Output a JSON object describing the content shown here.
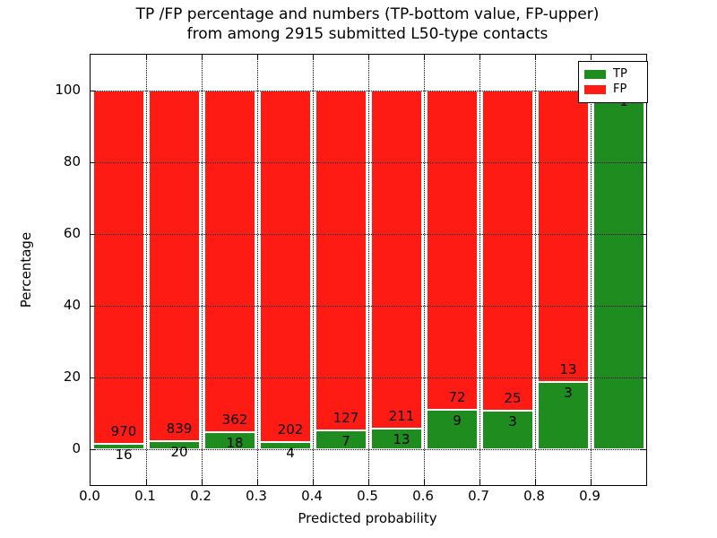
{
  "title": {
    "line1": "TP /FP percentage and numbers (TP-bottom value, FP-upper)",
    "line2": "from among 2915 submitted L50-type contacts"
  },
  "chart_data": {
    "type": "bar",
    "stacked": true,
    "orientation": "vertical",
    "total_contacts": 2915,
    "categories": [
      "0.0-0.1",
      "0.1-0.2",
      "0.2-0.3",
      "0.3-0.4",
      "0.4-0.5",
      "0.5-0.6",
      "0.6-0.7",
      "0.7-0.8",
      "0.8-0.9",
      "0.9-1.0"
    ],
    "series": [
      {
        "name": "TP",
        "color": "#1e8c1e",
        "counts": [
          16,
          20,
          18,
          4,
          7,
          13,
          9,
          3,
          3,
          1
        ]
      },
      {
        "name": "FP",
        "color": "#fd1b14",
        "counts": [
          970,
          839,
          362,
          202,
          127,
          211,
          72,
          25,
          13,
          0
        ]
      }
    ],
    "bar_value_labels_note": "TP count printed near bottom of each bar, FP count printed above it",
    "xlabel": "Predicted probability",
    "ylabel": "Percentage",
    "x_tick_labels": [
      "0.0",
      "0.1",
      "0.2",
      "0.3",
      "0.4",
      "0.5",
      "0.6",
      "0.7",
      "0.8",
      "0.9"
    ],
    "x_tick_values": [
      0.0,
      0.1,
      0.2,
      0.3,
      0.4,
      0.5,
      0.6,
      0.7,
      0.8,
      0.9
    ],
    "y_tick_values": [
      0,
      20,
      40,
      60,
      80,
      100
    ],
    "xlim": [
      0.0,
      1.0
    ],
    "ylim": [
      -10,
      110
    ],
    "grid": "dotted, drawn above bars",
    "legend": {
      "position": "upper right",
      "entries": [
        {
          "label": "TP",
          "color": "#1e8c1e"
        },
        {
          "label": "FP",
          "color": "#fd1b14"
        }
      ]
    }
  }
}
